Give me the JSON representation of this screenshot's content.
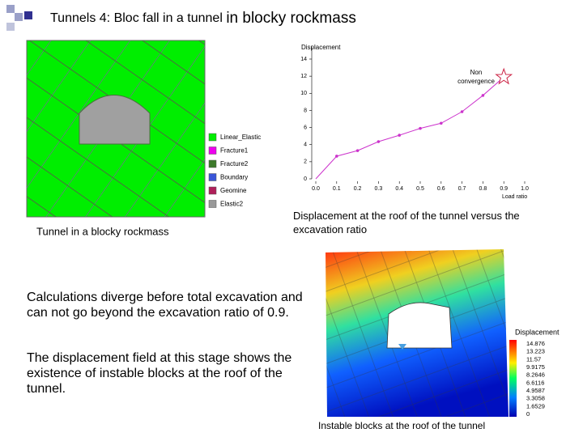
{
  "title": {
    "main": "Tunnels 4: Bloc fall in a tunnel",
    "tail": "in blocky rockmass"
  },
  "model_figure": {
    "caption": "Tunnel in a blocky rockmass",
    "legend": [
      {
        "name": "Linear_Elastic",
        "color": "#00ee00"
      },
      {
        "name": "Fracture1",
        "color": "#ee00ee"
      },
      {
        "name": "Fracture2",
        "color": "#3d7a2a"
      },
      {
        "name": "Boundary",
        "color": "#3a56d8"
      },
      {
        "name": "Geomine",
        "color": "#b0205a"
      },
      {
        "name": "Elastic2",
        "color": "#999999"
      }
    ]
  },
  "chart": {
    "type": "line",
    "ylabel": "Displacement",
    "xlabel": "Load ratio",
    "x": [
      0,
      0.1,
      0.2,
      0.3,
      0.4,
      0.5,
      0.6,
      0.7,
      0.8,
      0.9
    ],
    "series": [
      {
        "color": "#cc33cc",
        "values": [
          0,
          2.65,
          3.3,
          4.35,
          5.1,
          5.9,
          6.5,
          7.85,
          9.75,
          11.9
        ]
      }
    ],
    "xlim": [
      0,
      1
    ],
    "xticks": [
      {
        "value": 0,
        "label": "0.0"
      },
      0.1,
      0.2,
      0.3,
      0.4,
      0.5,
      0.6,
      0.7,
      0.8,
      0.9,
      {
        "value": 1,
        "label": "1.0"
      }
    ],
    "ylim": [
      0,
      14
    ],
    "yticks": [
      0,
      2,
      4,
      6,
      8,
      10,
      12,
      14
    ],
    "annotation": "Non convergence",
    "caption": "Displacement at the roof of the tunnel versus the excavation ratio"
  },
  "text": {
    "paragraphs": [
      "Calculations diverge before total excavation and can not go beyond the excavation ratio of 0.9.",
      "The displacement field at this stage shows the existence of instable blocks at the roof of the tunnel."
    ]
  },
  "contour_figure": {
    "caption": "Instable blocks at the roof of the tunnel",
    "colorbar": {
      "label": "Displacement",
      "ticks": [
        14.876,
        13.223,
        11.57,
        9.9175,
        8.2646,
        6.6116,
        4.9587,
        3.3058,
        1.6529,
        0
      ]
    }
  }
}
